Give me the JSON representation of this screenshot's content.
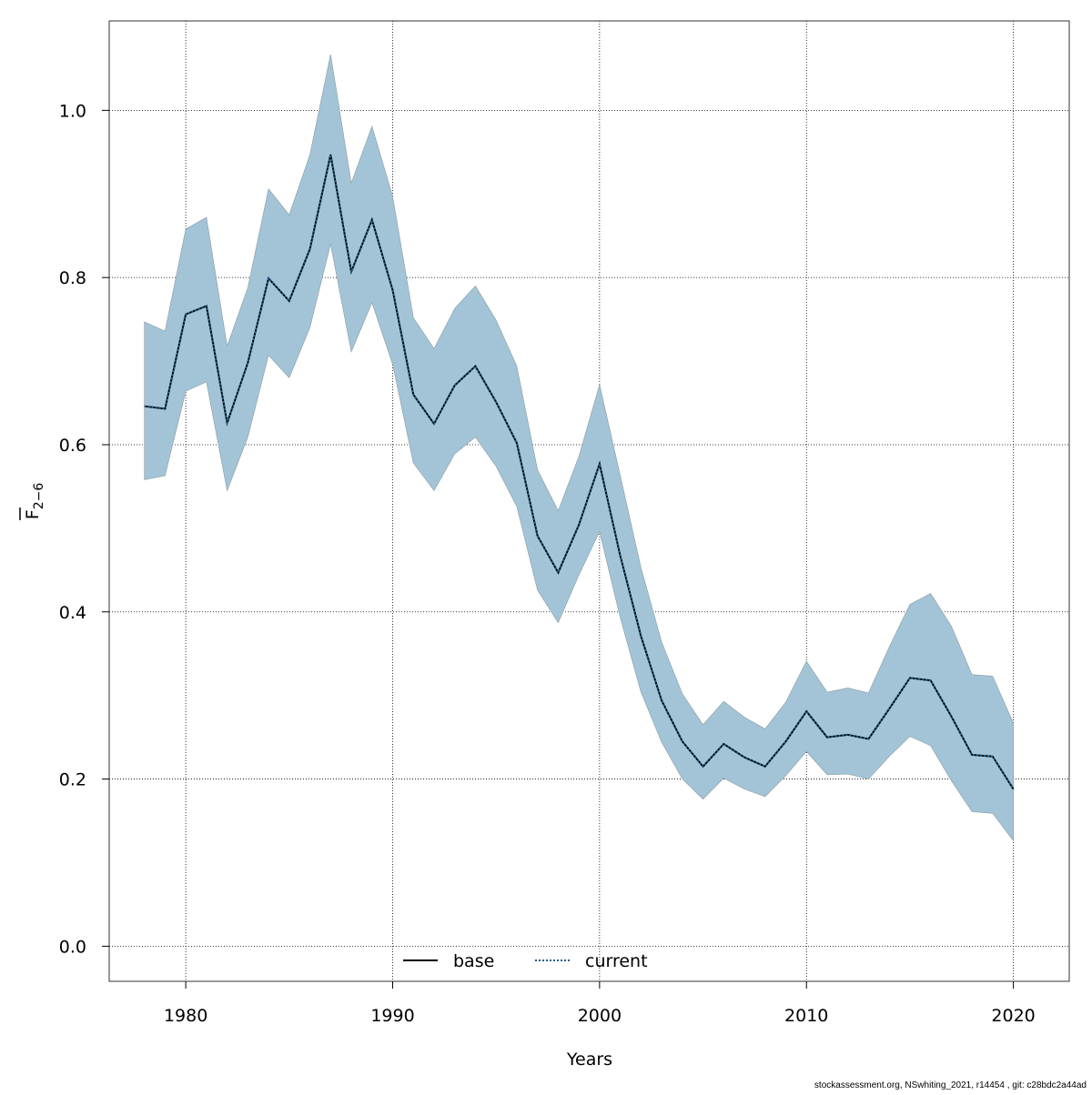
{
  "chart_data": {
    "type": "line",
    "xlabel": "Years",
    "ylabel_main": "F",
    "ylabel_sub": "2−6",
    "xlim": [
      1976.3,
      2022.7
    ],
    "ylim": [
      -0.042,
      1.107
    ],
    "x_ticks": [
      1980,
      1990,
      2000,
      2010,
      2020
    ],
    "y_ticks": [
      0.0,
      0.2,
      0.4,
      0.6,
      0.8,
      1.0
    ],
    "y_tick_labels": [
      "0.0",
      "0.2",
      "0.4",
      "0.6",
      "0.8",
      "1.0"
    ],
    "grid": true,
    "legend_placement": "bottom",
    "band_color": "#a3c4d6",
    "x": [
      1978,
      1979,
      1980,
      1981,
      1982,
      1983,
      1984,
      1985,
      1986,
      1987,
      1988,
      1989,
      1990,
      1991,
      1992,
      1993,
      1994,
      1995,
      1996,
      1997,
      1998,
      1999,
      2000,
      2001,
      2002,
      2003,
      2004,
      2005,
      2006,
      2007,
      2008,
      2009,
      2010,
      2011,
      2012,
      2013,
      2014,
      2015,
      2016,
      2017,
      2018,
      2019,
      2020
    ],
    "series": [
      {
        "name": "base",
        "color": "#000000",
        "style": "solid",
        "values": [
          0.646,
          0.643,
          0.756,
          0.766,
          0.626,
          0.698,
          0.799,
          0.772,
          0.834,
          0.947,
          0.807,
          0.869,
          0.785,
          0.66,
          0.625,
          0.671,
          0.694,
          0.651,
          0.602,
          0.491,
          0.447,
          0.504,
          0.577,
          0.467,
          0.371,
          0.294,
          0.245,
          0.215,
          0.242,
          0.226,
          0.215,
          0.245,
          0.281,
          0.25,
          0.253,
          0.248,
          0.284,
          0.321,
          0.318,
          0.275,
          0.229,
          0.227,
          0.188
        ]
      },
      {
        "name": "current",
        "color": "#1f5f8b",
        "style": "dotted",
        "values": [
          0.646,
          0.643,
          0.756,
          0.766,
          0.626,
          0.698,
          0.799,
          0.772,
          0.834,
          0.947,
          0.807,
          0.869,
          0.785,
          0.66,
          0.625,
          0.671,
          0.694,
          0.651,
          0.602,
          0.491,
          0.447,
          0.504,
          0.577,
          0.467,
          0.371,
          0.294,
          0.245,
          0.215,
          0.242,
          0.226,
          0.215,
          0.245,
          0.281,
          0.25,
          0.253,
          0.248,
          0.284,
          0.321,
          0.318,
          0.275,
          0.229,
          0.227,
          0.188
        ]
      }
    ],
    "band_upper": [
      0.747,
      0.736,
      0.858,
      0.872,
      0.718,
      0.788,
      0.906,
      0.875,
      0.947,
      1.067,
      0.913,
      0.981,
      0.897,
      0.752,
      0.715,
      0.763,
      0.79,
      0.749,
      0.694,
      0.57,
      0.521,
      0.586,
      0.672,
      0.563,
      0.453,
      0.364,
      0.302,
      0.265,
      0.293,
      0.274,
      0.26,
      0.292,
      0.341,
      0.304,
      0.309,
      0.303,
      0.358,
      0.409,
      0.422,
      0.383,
      0.325,
      0.323,
      0.267
    ],
    "band_lower": [
      0.558,
      0.563,
      0.664,
      0.675,
      0.545,
      0.609,
      0.707,
      0.68,
      0.74,
      0.84,
      0.711,
      0.77,
      0.696,
      0.578,
      0.545,
      0.589,
      0.609,
      0.574,
      0.526,
      0.426,
      0.387,
      0.444,
      0.496,
      0.393,
      0.304,
      0.244,
      0.2,
      0.176,
      0.201,
      0.188,
      0.179,
      0.204,
      0.233,
      0.205,
      0.206,
      0.2,
      0.227,
      0.251,
      0.24,
      0.198,
      0.161,
      0.159,
      0.126
    ]
  },
  "footer": "stockassessment.org, NSwhiting_2021, r14454 , git: c28bdc2a44ad"
}
